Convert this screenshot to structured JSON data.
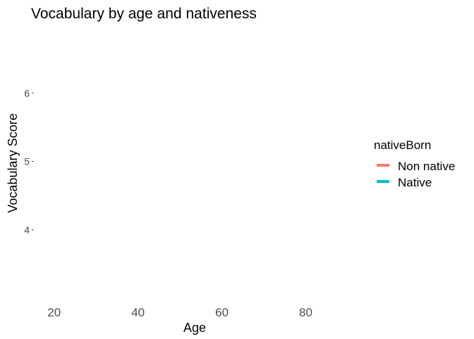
{
  "chart_data": {
    "type": "line",
    "title": "Vocabulary by age and nativeness",
    "xlabel": "Age",
    "ylabel": "Vocabulary Score",
    "x_ticks": [
      20,
      40,
      60,
      80
    ],
    "y_ticks": [
      4,
      5,
      6
    ],
    "xlim": [
      15.5,
      89.5
    ],
    "ylim": [
      3.0,
      6.95
    ],
    "grid": false,
    "legend": {
      "title": "nativeBorn",
      "placement": "right",
      "entries": [
        {
          "label": "Non native",
          "color": "#F8766D"
        },
        {
          "label": "Native",
          "color": "#00BFC4"
        }
      ]
    },
    "series": []
  }
}
